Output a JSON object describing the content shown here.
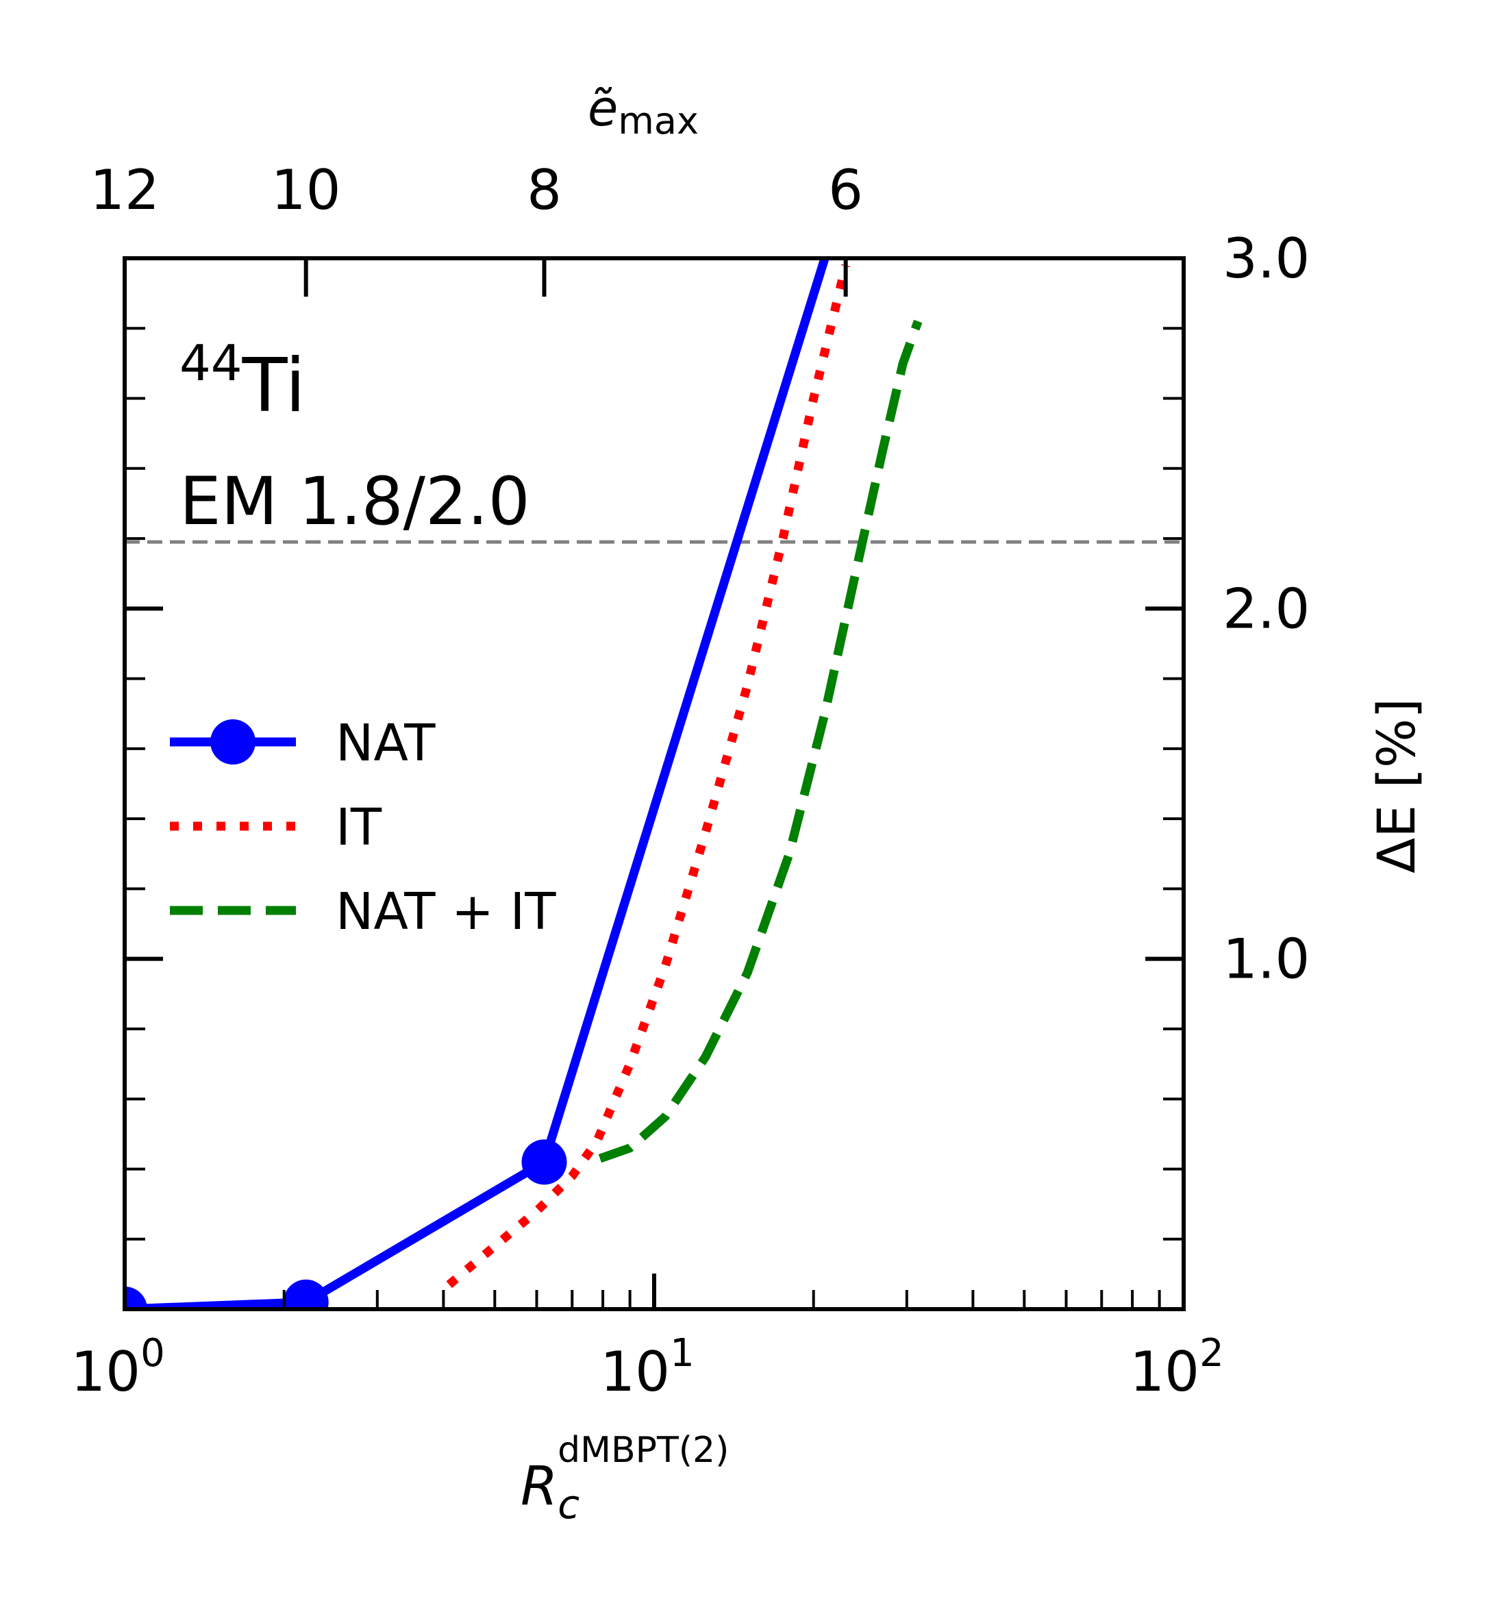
{
  "chart_data": {
    "type": "line",
    "nucleus": {
      "mass_number": "44",
      "element": "Ti"
    },
    "interaction": "EM 1.8/2.0",
    "x_axis": {
      "label_main": "R",
      "label_sub": "c",
      "label_sup": "dMBPT(2)",
      "scale": "log",
      "xlim": [
        1,
        100
      ],
      "ticks": [
        {
          "value": 1,
          "base": "10",
          "exp": "0"
        },
        {
          "value": 10,
          "base": "10",
          "exp": "1"
        },
        {
          "value": 100,
          "base": "10",
          "exp": "2"
        }
      ]
    },
    "top_axis": {
      "label_main": "ẽ",
      "label_sub": "max",
      "ticks": [
        {
          "label": "12",
          "x": 1.0
        },
        {
          "label": "10",
          "x": 2.2
        },
        {
          "label": "8",
          "x": 6.2
        },
        {
          "label": "6",
          "x": 23.0
        }
      ]
    },
    "y_axis": {
      "label": "ΔE [%]",
      "ylim": [
        0,
        3.0
      ],
      "ticks": [
        {
          "value": 1.0,
          "label": "1.0"
        },
        {
          "value": 2.0,
          "label": "2.0"
        },
        {
          "value": 3.0,
          "label": "3.0"
        }
      ],
      "minor_step": 0.2
    },
    "reference_line": {
      "y": 2.19,
      "color": "#808080"
    },
    "series": [
      {
        "name": "NAT",
        "color": "#0000ff",
        "style": "solid-markers",
        "points": [
          [
            1.0,
            0.0
          ],
          [
            2.2,
            0.02
          ],
          [
            6.2,
            0.42
          ],
          [
            21.0,
            3.0
          ]
        ],
        "markers": [
          [
            1.0,
            0.0
          ],
          [
            2.2,
            0.02
          ],
          [
            6.2,
            0.42
          ]
        ]
      },
      {
        "name": "IT",
        "color": "#ff0000",
        "style": "dotted",
        "points": [
          [
            4.1,
            0.07
          ],
          [
            5.0,
            0.18
          ],
          [
            6.0,
            0.28
          ],
          [
            7.0,
            0.38
          ],
          [
            7.8,
            0.48
          ],
          [
            9.0,
            0.7
          ],
          [
            10.5,
            0.98
          ],
          [
            12.5,
            1.36
          ],
          [
            15.0,
            1.78
          ],
          [
            17.5,
            2.2
          ],
          [
            20.0,
            2.6
          ],
          [
            23.0,
            2.98
          ]
        ]
      },
      {
        "name": "NAT + IT",
        "color": "#008000",
        "style": "dashed",
        "points": [
          [
            7.9,
            0.43
          ],
          [
            9.0,
            0.46
          ],
          [
            10.5,
            0.55
          ],
          [
            12.5,
            0.72
          ],
          [
            15.0,
            0.96
          ],
          [
            18.0,
            1.3
          ],
          [
            21.0,
            1.7
          ],
          [
            24.0,
            2.1
          ],
          [
            27.0,
            2.45
          ],
          [
            29.5,
            2.7
          ],
          [
            31.5,
            2.82
          ]
        ]
      }
    ],
    "legend": {
      "position": "center-left"
    }
  }
}
